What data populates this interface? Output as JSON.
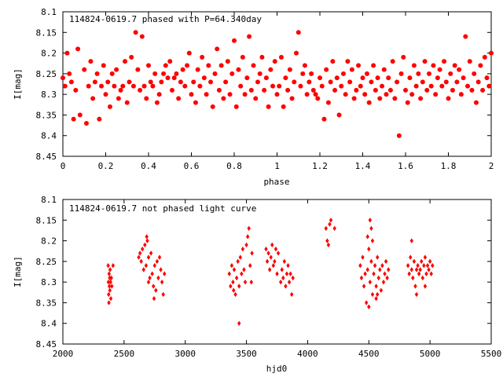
{
  "chart_data": [
    {
      "type": "scatter",
      "title": "114824-0619.7 phased with P=64.340day",
      "xlabel": "phase",
      "ylabel": "I[mag]",
      "xlim": [
        0,
        2
      ],
      "ylim": [
        8.1,
        8.45
      ],
      "y_inverted": true,
      "grid": false,
      "marker": "filled-circle",
      "color": "#ff0000",
      "xticks": [
        "0",
        "0.2",
        "0.4",
        "0.6",
        "0.8",
        "1",
        "1.2",
        "1.4",
        "1.6",
        "1.8",
        "2"
      ],
      "yticks": [
        "8.1",
        "8.15",
        "8.2",
        "8.25",
        "8.3",
        "8.35",
        "8.4",
        "8.45"
      ],
      "points": [
        [
          0.0,
          8.26
        ],
        [
          0.01,
          8.28
        ],
        [
          0.02,
          8.2
        ],
        [
          0.03,
          8.25
        ],
        [
          0.04,
          8.27
        ],
        [
          0.05,
          8.36
        ],
        [
          0.06,
          8.29
        ],
        [
          0.07,
          8.19
        ],
        [
          0.08,
          8.35
        ],
        [
          0.1,
          8.24
        ],
        [
          0.11,
          8.37
        ],
        [
          0.12,
          8.28
        ],
        [
          0.13,
          8.22
        ],
        [
          0.14,
          8.31
        ],
        [
          0.15,
          8.27
        ],
        [
          0.16,
          8.25
        ],
        [
          0.17,
          8.36
        ],
        [
          0.18,
          8.28
        ],
        [
          0.19,
          8.23
        ],
        [
          0.2,
          8.3
        ],
        [
          0.21,
          8.27
        ],
        [
          0.22,
          8.33
        ],
        [
          0.23,
          8.25
        ],
        [
          0.24,
          8.28
        ],
        [
          0.25,
          8.24
        ],
        [
          0.26,
          8.31
        ],
        [
          0.27,
          8.29
        ],
        [
          0.28,
          8.28
        ],
        [
          0.29,
          8.22
        ],
        [
          0.3,
          8.32
        ],
        [
          0.31,
          8.27
        ],
        [
          0.32,
          8.21
        ],
        [
          0.33,
          8.28
        ],
        [
          0.34,
          8.15
        ],
        [
          0.35,
          8.24
        ],
        [
          0.36,
          8.29
        ],
        [
          0.37,
          8.16
        ],
        [
          0.38,
          8.28
        ],
        [
          0.39,
          8.31
        ],
        [
          0.4,
          8.23
        ],
        [
          0.41,
          8.27
        ],
        [
          0.42,
          8.28
        ],
        [
          0.43,
          8.25
        ],
        [
          0.44,
          8.32
        ],
        [
          0.45,
          8.3
        ],
        [
          0.46,
          8.27
        ],
        [
          0.47,
          8.25
        ],
        [
          0.48,
          8.23
        ],
        [
          0.49,
          8.26
        ],
        [
          0.5,
          8.22
        ],
        [
          0.51,
          8.29
        ],
        [
          0.52,
          8.26
        ],
        [
          0.53,
          8.25
        ],
        [
          0.54,
          8.31
        ],
        [
          0.55,
          8.27
        ],
        [
          0.56,
          8.24
        ],
        [
          0.57,
          8.28
        ],
        [
          0.58,
          8.23
        ],
        [
          0.59,
          8.2
        ],
        [
          0.6,
          8.3
        ],
        [
          0.61,
          8.27
        ],
        [
          0.62,
          8.32
        ],
        [
          0.63,
          8.24
        ],
        [
          0.64,
          8.28
        ],
        [
          0.65,
          8.21
        ],
        [
          0.66,
          8.26
        ],
        [
          0.67,
          8.3
        ],
        [
          0.68,
          8.23
        ],
        [
          0.69,
          8.27
        ],
        [
          0.7,
          8.33
        ],
        [
          0.71,
          8.25
        ],
        [
          0.72,
          8.19
        ],
        [
          0.73,
          8.29
        ],
        [
          0.74,
          8.23
        ],
        [
          0.75,
          8.31
        ],
        [
          0.76,
          8.27
        ],
        [
          0.77,
          8.22
        ],
        [
          0.78,
          8.3
        ],
        [
          0.79,
          8.25
        ],
        [
          0.8,
          8.17
        ],
        [
          0.81,
          8.33
        ],
        [
          0.82,
          8.24
        ],
        [
          0.83,
          8.28
        ],
        [
          0.84,
          8.21
        ],
        [
          0.85,
          8.3
        ],
        [
          0.86,
          8.26
        ],
        [
          0.87,
          8.16
        ],
        [
          0.88,
          8.29
        ],
        [
          0.89,
          8.23
        ],
        [
          0.9,
          8.31
        ],
        [
          0.91,
          8.27
        ],
        [
          0.92,
          8.25
        ],
        [
          0.93,
          8.21
        ],
        [
          0.94,
          8.29
        ],
        [
          0.95,
          8.26
        ],
        [
          0.96,
          8.33
        ],
        [
          0.97,
          8.24
        ],
        [
          0.98,
          8.28
        ],
        [
          0.99,
          8.22
        ],
        [
          1.0,
          8.3
        ],
        [
          1.01,
          8.28
        ],
        [
          1.02,
          8.21
        ],
        [
          1.03,
          8.33
        ],
        [
          1.04,
          8.26
        ],
        [
          1.05,
          8.29
        ],
        [
          1.06,
          8.24
        ],
        [
          1.07,
          8.31
        ],
        [
          1.08,
          8.27
        ],
        [
          1.09,
          8.2
        ],
        [
          1.1,
          8.15
        ],
        [
          1.11,
          8.28
        ],
        [
          1.12,
          8.25
        ],
        [
          1.13,
          8.23
        ],
        [
          1.14,
          8.3
        ],
        [
          1.15,
          8.27
        ],
        [
          1.16,
          8.25
        ],
        [
          1.17,
          8.29
        ],
        [
          1.18,
          8.3
        ],
        [
          1.19,
          8.31
        ],
        [
          1.2,
          8.26
        ],
        [
          1.21,
          8.28
        ],
        [
          1.22,
          8.36
        ],
        [
          1.23,
          8.24
        ],
        [
          1.24,
          8.32
        ],
        [
          1.25,
          8.27
        ],
        [
          1.26,
          8.22
        ],
        [
          1.27,
          8.29
        ],
        [
          1.28,
          8.26
        ],
        [
          1.29,
          8.35
        ],
        [
          1.3,
          8.28
        ],
        [
          1.31,
          8.25
        ],
        [
          1.32,
          8.3
        ],
        [
          1.33,
          8.22
        ],
        [
          1.34,
          8.27
        ],
        [
          1.35,
          8.24
        ],
        [
          1.36,
          8.31
        ],
        [
          1.37,
          8.29
        ],
        [
          1.38,
          8.23
        ],
        [
          1.39,
          8.28
        ],
        [
          1.4,
          8.26
        ],
        [
          1.41,
          8.3
        ],
        [
          1.42,
          8.25
        ],
        [
          1.43,
          8.32
        ],
        [
          1.44,
          8.27
        ],
        [
          1.45,
          8.23
        ],
        [
          1.46,
          8.29
        ],
        [
          1.47,
          8.26
        ],
        [
          1.48,
          8.31
        ],
        [
          1.49,
          8.28
        ],
        [
          1.5,
          8.24
        ],
        [
          1.51,
          8.3
        ],
        [
          1.52,
          8.26
        ],
        [
          1.53,
          8.29
        ],
        [
          1.54,
          8.22
        ],
        [
          1.55,
          8.31
        ],
        [
          1.56,
          8.27
        ],
        [
          1.57,
          8.4
        ],
        [
          1.58,
          8.25
        ],
        [
          1.59,
          8.21
        ],
        [
          1.6,
          8.29
        ],
        [
          1.61,
          8.32
        ],
        [
          1.62,
          8.26
        ],
        [
          1.63,
          8.3
        ],
        [
          1.64,
          8.23
        ],
        [
          1.65,
          8.28
        ],
        [
          1.66,
          8.25
        ],
        [
          1.67,
          8.31
        ],
        [
          1.68,
          8.27
        ],
        [
          1.69,
          8.22
        ],
        [
          1.7,
          8.29
        ],
        [
          1.71,
          8.25
        ],
        [
          1.72,
          8.28
        ],
        [
          1.73,
          8.23
        ],
        [
          1.74,
          8.3
        ],
        [
          1.75,
          8.26
        ],
        [
          1.76,
          8.24
        ],
        [
          1.77,
          8.28
        ],
        [
          1.78,
          8.22
        ],
        [
          1.79,
          8.27
        ],
        [
          1.8,
          8.31
        ],
        [
          1.81,
          8.25
        ],
        [
          1.82,
          8.29
        ],
        [
          1.83,
          8.23
        ],
        [
          1.84,
          8.27
        ],
        [
          1.85,
          8.24
        ],
        [
          1.86,
          8.3
        ],
        [
          1.87,
          8.26
        ],
        [
          1.88,
          8.16
        ],
        [
          1.89,
          8.28
        ],
        [
          1.9,
          8.22
        ],
        [
          1.91,
          8.29
        ],
        [
          1.92,
          8.25
        ],
        [
          1.93,
          8.32
        ],
        [
          1.94,
          8.27
        ],
        [
          1.95,
          8.23
        ],
        [
          1.96,
          8.29
        ],
        [
          1.97,
          8.21
        ],
        [
          1.98,
          8.26
        ],
        [
          1.99,
          8.28
        ],
        [
          2.0,
          8.2
        ]
      ]
    },
    {
      "type": "scatter",
      "title": "114824-0619.7 not phased light curve",
      "xlabel": "hjd0",
      "ylabel": "I[mag]",
      "xlim": [
        2000,
        5500
      ],
      "ylim": [
        8.1,
        8.45
      ],
      "y_inverted": true,
      "grid": false,
      "marker": "filled-diamond",
      "color": "#ff0000",
      "xticks": [
        "2000",
        "2500",
        "3000",
        "3500",
        "4000",
        "4500",
        "5000",
        "5500"
      ],
      "yticks": [
        "8.1",
        "8.15",
        "8.2",
        "8.25",
        "8.3",
        "8.35",
        "8.4",
        "8.45"
      ],
      "points": [
        [
          2370,
          8.26
        ],
        [
          2372,
          8.3
        ],
        [
          2374,
          8.33
        ],
        [
          2376,
          8.35
        ],
        [
          2378,
          8.28
        ],
        [
          2380,
          8.31
        ],
        [
          2382,
          8.29
        ],
        [
          2384,
          8.32
        ],
        [
          2386,
          8.27
        ],
        [
          2390,
          8.3
        ],
        [
          2392,
          8.34
        ],
        [
          2396,
          8.29
        ],
        [
          2400,
          8.31
        ],
        [
          2410,
          8.26
        ],
        [
          2620,
          8.24
        ],
        [
          2630,
          8.23
        ],
        [
          2640,
          8.25
        ],
        [
          2650,
          8.22
        ],
        [
          2660,
          8.27
        ],
        [
          2670,
          8.21
        ],
        [
          2680,
          8.26
        ],
        [
          2690,
          8.2
        ],
        [
          2700,
          8.24
        ],
        [
          2710,
          8.29
        ],
        [
          2720,
          8.23
        ],
        [
          2730,
          8.28
        ],
        [
          2740,
          8.31
        ],
        [
          2750,
          8.26
        ],
        [
          2760,
          8.32
        ],
        [
          2770,
          8.25
        ],
        [
          2780,
          8.29
        ],
        [
          2790,
          8.24
        ],
        [
          2800,
          8.27
        ],
        [
          2810,
          8.3
        ],
        [
          2820,
          8.33
        ],
        [
          2830,
          8.28
        ],
        [
          2745,
          8.34
        ],
        [
          2700,
          8.3
        ],
        [
          2685,
          8.19
        ],
        [
          3360,
          8.28
        ],
        [
          3370,
          8.31
        ],
        [
          3380,
          8.26
        ],
        [
          3390,
          8.3
        ],
        [
          3400,
          8.27
        ],
        [
          3410,
          8.33
        ],
        [
          3420,
          8.29
        ],
        [
          3430,
          8.25
        ],
        [
          3440,
          8.31
        ],
        [
          3450,
          8.24
        ],
        [
          3460,
          8.28
        ],
        [
          3470,
          8.22
        ],
        [
          3480,
          8.27
        ],
        [
          3490,
          8.3
        ],
        [
          3500,
          8.21
        ],
        [
          3510,
          8.19
        ],
        [
          3520,
          8.17
        ],
        [
          3530,
          8.26
        ],
        [
          3540,
          8.3
        ],
        [
          3545,
          8.23
        ],
        [
          3440,
          8.4
        ],
        [
          3395,
          8.32
        ],
        [
          3660,
          8.22
        ],
        [
          3670,
          8.25
        ],
        [
          3680,
          8.23
        ],
        [
          3690,
          8.27
        ],
        [
          3700,
          8.24
        ],
        [
          3710,
          8.21
        ],
        [
          3720,
          8.26
        ],
        [
          3730,
          8.25
        ],
        [
          3740,
          8.22
        ],
        [
          3750,
          8.28
        ],
        [
          3760,
          8.23
        ],
        [
          3780,
          8.3
        ],
        [
          3790,
          8.27
        ],
        [
          3800,
          8.29
        ],
        [
          3810,
          8.25
        ],
        [
          3820,
          8.31
        ],
        [
          3830,
          8.28
        ],
        [
          3840,
          8.26
        ],
        [
          3850,
          8.3
        ],
        [
          3860,
          8.28
        ],
        [
          3870,
          8.33
        ],
        [
          3880,
          8.29
        ],
        [
          4150,
          8.17
        ],
        [
          4160,
          8.2
        ],
        [
          4170,
          8.21
        ],
        [
          4180,
          8.16
        ],
        [
          4190,
          8.15
        ],
        [
          4220,
          8.17
        ],
        [
          4430,
          8.26
        ],
        [
          4440,
          8.29
        ],
        [
          4450,
          8.24
        ],
        [
          4460,
          8.31
        ],
        [
          4470,
          8.28
        ],
        [
          4480,
          8.35
        ],
        [
          4490,
          8.27
        ],
        [
          4500,
          8.22
        ],
        [
          4510,
          8.3
        ],
        [
          4520,
          8.25
        ],
        [
          4530,
          8.33
        ],
        [
          4540,
          8.28
        ],
        [
          4550,
          8.26
        ],
        [
          4560,
          8.31
        ],
        [
          4570,
          8.24
        ],
        [
          4580,
          8.29
        ],
        [
          4590,
          8.27
        ],
        [
          4600,
          8.32
        ],
        [
          4610,
          8.26
        ],
        [
          4620,
          8.3
        ],
        [
          4630,
          8.28
        ],
        [
          4640,
          8.25
        ],
        [
          4650,
          8.29
        ],
        [
          4660,
          8.27
        ],
        [
          4500,
          8.36
        ],
        [
          4510,
          8.15
        ],
        [
          4520,
          8.17
        ],
        [
          4490,
          8.19
        ],
        [
          4530,
          8.2
        ],
        [
          4570,
          8.33
        ],
        [
          4560,
          8.34
        ],
        [
          4820,
          8.26
        ],
        [
          4830,
          8.28
        ],
        [
          4840,
          8.24
        ],
        [
          4850,
          8.27
        ],
        [
          4860,
          8.29
        ],
        [
          4870,
          8.25
        ],
        [
          4880,
          8.31
        ],
        [
          4890,
          8.27
        ],
        [
          4900,
          8.26
        ],
        [
          4910,
          8.28
        ],
        [
          4920,
          8.27
        ],
        [
          4930,
          8.25
        ],
        [
          4940,
          8.29
        ],
        [
          4950,
          8.26
        ],
        [
          4960,
          8.24
        ],
        [
          4970,
          8.28
        ],
        [
          4980,
          8.26
        ],
        [
          4990,
          8.27
        ],
        [
          5000,
          8.25
        ],
        [
          5010,
          8.28
        ],
        [
          5020,
          8.26
        ],
        [
          4850,
          8.2
        ],
        [
          4890,
          8.33
        ],
        [
          4960,
          8.31
        ]
      ]
    }
  ]
}
